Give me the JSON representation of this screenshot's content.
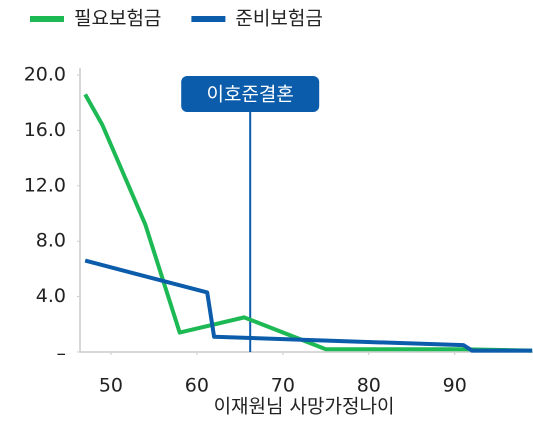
{
  "chart_data": {
    "type": "line",
    "x": [
      47,
      49,
      54,
      58,
      65.5,
      75,
      91,
      99
    ],
    "series": [
      {
        "name": "필요보험금",
        "color": "#1db954",
        "values": [
          18.6,
          16.4,
          9.2,
          1.4,
          2.5,
          0.2,
          0.2,
          0.1
        ]
      },
      {
        "name": "준비보험금",
        "color": "#0b5cab",
        "values": [
          6.6,
          null,
          null,
          null,
          null,
          null,
          null,
          null
        ]
      }
    ],
    "series_x": null,
    "xlim": [
      46.4,
      99.1
    ],
    "ylim": [
      0,
      20
    ],
    "xticks": [
      50,
      60,
      70,
      80,
      90
    ],
    "yticks": [
      {
        "value": 0,
        "label": "–"
      },
      {
        "value": 4,
        "label": "4.0"
      },
      {
        "value": 8,
        "label": "8.0"
      },
      {
        "value": 12,
        "label": "12.0"
      },
      {
        "value": 16,
        "label": "16.0"
      },
      {
        "value": 20,
        "label": "20.0"
      }
    ],
    "xlabel": "이재원님 사망가정나이",
    "annotation": {
      "text": "이호준결혼",
      "x": 66.2
    },
    "grid": false,
    "legend": "top"
  }
}
